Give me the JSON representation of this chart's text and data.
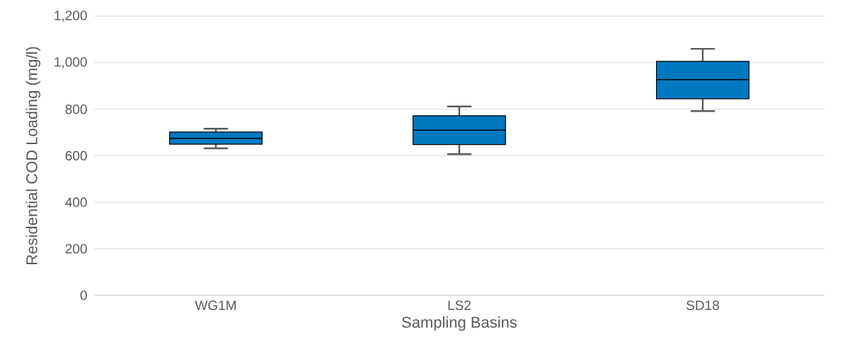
{
  "chart_data": {
    "type": "box",
    "xlabel": "Sampling Basins",
    "ylabel": "Residential COD Loading (mg/l)",
    "categories": [
      "WG1M",
      "LS2",
      "SD18"
    ],
    "series": [
      {
        "color": "#0079c1",
        "boxes": [
          {
            "low": 632,
            "q1": 650,
            "median": 675,
            "q3": 702,
            "high": 716
          },
          {
            "low": 607,
            "q1": 648,
            "median": 710,
            "q3": 772,
            "high": 812
          },
          {
            "low": 792,
            "q1": 845,
            "median": 927,
            "q3": 1006,
            "high": 1060
          }
        ]
      }
    ],
    "ylim": [
      0,
      1200
    ],
    "yticks": [
      0,
      200,
      400,
      600,
      800,
      {
        "value": 1000,
        "label": "1,000"
      },
      {
        "value": 1200,
        "label": "1,200"
      }
    ],
    "grid": "y"
  }
}
